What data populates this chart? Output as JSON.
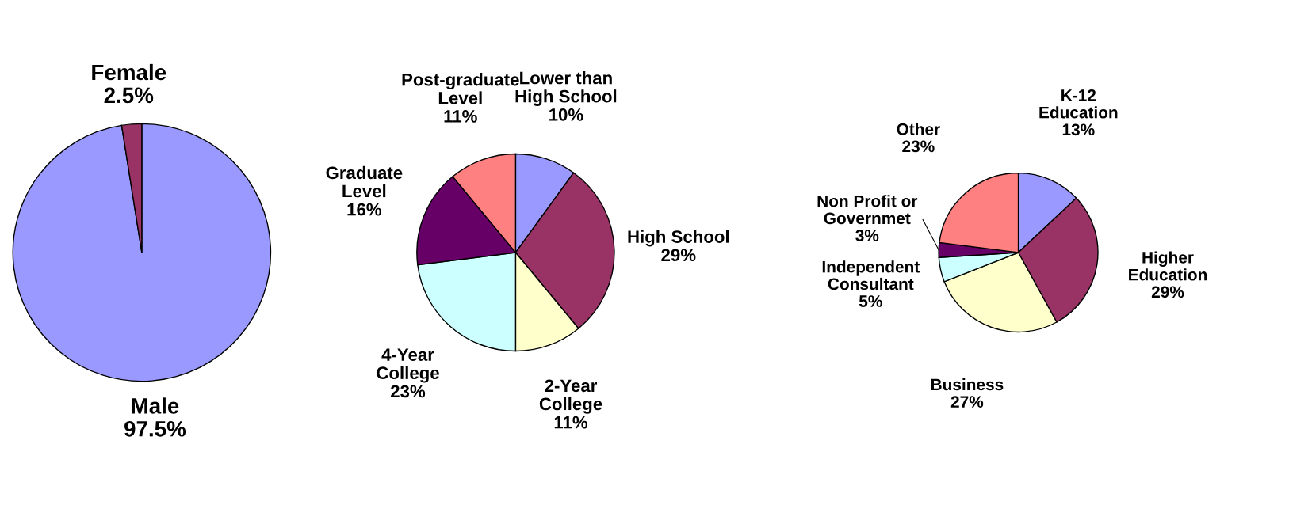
{
  "chart_data": [
    {
      "type": "pie",
      "categories": [
        "Male",
        "Female"
      ],
      "values": [
        97.5,
        2.5
      ],
      "value_labels": [
        "97.5%",
        "2.5%"
      ],
      "colors": [
        "#9999ff",
        "#993366"
      ],
      "legend": false
    },
    {
      "type": "pie",
      "categories": [
        "Lower than\nHigh School",
        "High School",
        "2-Year\nCollege",
        "4-Year\nCollege",
        "Graduate\nLevel",
        "Post-graduate\nLevel"
      ],
      "values": [
        10,
        29,
        11,
        23,
        16,
        11
      ],
      "value_labels": [
        "10%",
        "29%",
        "11%",
        "23%",
        "16%",
        "11%"
      ],
      "colors": [
        "#9999ff",
        "#993366",
        "#ffffcc",
        "#ccffff",
        "#660066",
        "#ff8080"
      ],
      "legend": false
    },
    {
      "type": "pie",
      "categories": [
        "K-12\nEducation",
        "Higher\nEducation",
        "Business",
        "Independent\nConsultant",
        "Non Profit or\nGovernmet",
        "Other"
      ],
      "values": [
        13,
        29,
        27,
        5,
        3,
        23
      ],
      "value_labels": [
        "13%",
        "29%",
        "27%",
        "5%",
        "3%",
        "23%"
      ],
      "colors": [
        "#9999ff",
        "#993366",
        "#ffffcc",
        "#ccffff",
        "#660066",
        "#ff8080"
      ],
      "legend": false
    }
  ]
}
